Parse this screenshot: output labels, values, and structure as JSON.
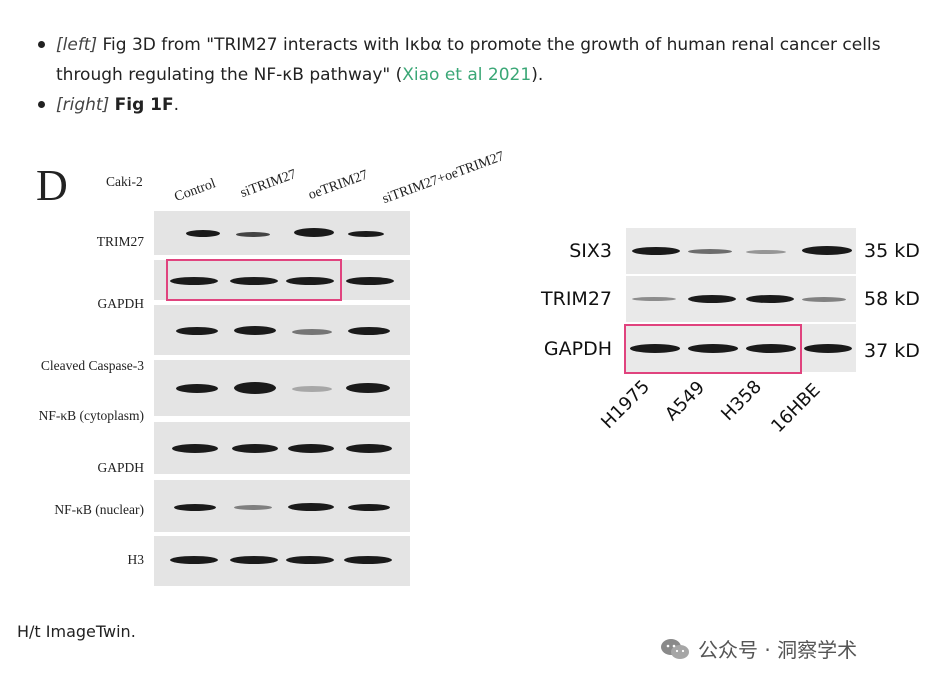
{
  "bullets": [
    {
      "tag": "[left]",
      "text_before": " Fig 3D from \"TRIM27 interacts with Iκbα to promote the growth of human renal cancer cells through regulating the NF-κB pathway\" (",
      "link": "Xiao et al 2021",
      "text_after": ")."
    },
    {
      "tag": "[right]",
      "bold": "Fig 1F",
      "text_after": "."
    }
  ],
  "left_figure": {
    "panel_letter": "D",
    "cell_line": "Caki-2",
    "columns": [
      "Control",
      "siTRIM27",
      "oeTRIM27",
      "siTRIM27+oeTRIM27"
    ],
    "row_labels": [
      "TRIM27",
      "GAPDH",
      "Cleaved Caspase-3",
      "NF-κB (cytoplasm)",
      "GAPDH",
      "NF-κB (nuclear)",
      "H3"
    ]
  },
  "right_figure": {
    "row_labels": [
      "SIX3",
      "TRIM27",
      "GAPDH"
    ],
    "sizes": [
      "35 kD",
      "58 kD",
      "37 kD"
    ],
    "columns": [
      "H1975",
      "A549",
      "H358",
      "16HBE"
    ]
  },
  "footer": {
    "text": "H/t ImageTwin."
  },
  "watermark": {
    "text": "公众号 · 洞察学术",
    "icon": "wechat-icon"
  },
  "colors": {
    "highlight": "#e0437e",
    "link": "#3aa776"
  }
}
